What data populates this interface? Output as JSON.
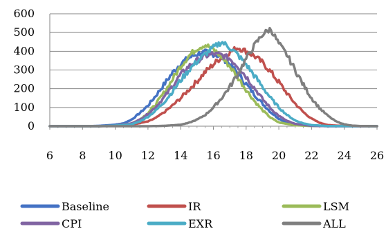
{
  "chart_data": {
    "type": "line",
    "title": "",
    "xlabel": "",
    "ylabel": "",
    "xlim": [
      6,
      26
    ],
    "ylim": [
      0,
      600
    ],
    "x_ticks": [
      "6",
      "8",
      "10",
      "12",
      "14",
      "16",
      "18",
      "20",
      "22",
      "24",
      "26"
    ],
    "y_ticks": [
      "0",
      "100",
      "200",
      "300",
      "400",
      "500",
      "600"
    ],
    "grid": "horizontal",
    "legend_position": "bottom",
    "series": [
      {
        "name": "Baseline",
        "color": "#4472C4",
        "points": [
          [
            6,
            0
          ],
          [
            8,
            0
          ],
          [
            9,
            2
          ],
          [
            10,
            8
          ],
          [
            10.5,
            15
          ],
          [
            11,
            35
          ],
          [
            11.5,
            70
          ],
          [
            12,
            110
          ],
          [
            12.5,
            165
          ],
          [
            13,
            225
          ],
          [
            13.5,
            285
          ],
          [
            14,
            335
          ],
          [
            14.5,
            365
          ],
          [
            15,
            385
          ],
          [
            15.5,
            395
          ],
          [
            16,
            385
          ],
          [
            16.5,
            370
          ],
          [
            17,
            330
          ],
          [
            17.5,
            280
          ],
          [
            18,
            225
          ],
          [
            18.5,
            170
          ],
          [
            19,
            120
          ],
          [
            19.5,
            75
          ],
          [
            20,
            40
          ],
          [
            20.5,
            18
          ],
          [
            21,
            8
          ],
          [
            22,
            2
          ],
          [
            23,
            0
          ],
          [
            26,
            0
          ]
        ]
      },
      {
        "name": "IR",
        "color": "#C0504D",
        "points": [
          [
            6,
            0
          ],
          [
            9,
            0
          ],
          [
            10,
            2
          ],
          [
            11,
            8
          ],
          [
            12,
            25
          ],
          [
            12.5,
            45
          ],
          [
            13,
            75
          ],
          [
            13.5,
            110
          ],
          [
            14,
            150
          ],
          [
            14.5,
            195
          ],
          [
            15,
            240
          ],
          [
            15.5,
            290
          ],
          [
            16,
            330
          ],
          [
            16.5,
            370
          ],
          [
            17,
            395
          ],
          [
            17.5,
            420
          ],
          [
            18,
            400
          ],
          [
            18.5,
            375
          ],
          [
            19,
            340
          ],
          [
            19.5,
            290
          ],
          [
            20,
            235
          ],
          [
            20.5,
            175
          ],
          [
            21,
            120
          ],
          [
            21.5,
            75
          ],
          [
            22,
            40
          ],
          [
            22.5,
            18
          ],
          [
            23,
            6
          ],
          [
            24,
            1
          ],
          [
            26,
            0
          ]
        ]
      },
      {
        "name": "LSM",
        "color": "#9BBB59",
        "points": [
          [
            6,
            0
          ],
          [
            9,
            0
          ],
          [
            10,
            3
          ],
          [
            11,
            15
          ],
          [
            11.5,
            35
          ],
          [
            12,
            70
          ],
          [
            12.5,
            120
          ],
          [
            13,
            180
          ],
          [
            13.5,
            250
          ],
          [
            14,
            320
          ],
          [
            14.5,
            375
          ],
          [
            15,
            415
          ],
          [
            15.5,
            435
          ],
          [
            16,
            410
          ],
          [
            16.5,
            370
          ],
          [
            17,
            320
          ],
          [
            17.5,
            260
          ],
          [
            18,
            195
          ],
          [
            18.5,
            135
          ],
          [
            19,
            85
          ],
          [
            19.5,
            45
          ],
          [
            20,
            20
          ],
          [
            21,
            5
          ],
          [
            22,
            1
          ],
          [
            26,
            0
          ]
        ]
      },
      {
        "name": "CPI",
        "color": "#8064A2",
        "points": [
          [
            6,
            0
          ],
          [
            9,
            0
          ],
          [
            10,
            3
          ],
          [
            11,
            15
          ],
          [
            11.5,
            35
          ],
          [
            12,
            65
          ],
          [
            12.5,
            105
          ],
          [
            13,
            155
          ],
          [
            13.5,
            215
          ],
          [
            14,
            275
          ],
          [
            14.5,
            320
          ],
          [
            15,
            350
          ],
          [
            15.5,
            375
          ],
          [
            16,
            385
          ],
          [
            16.5,
            380
          ],
          [
            17,
            360
          ],
          [
            17.5,
            320
          ],
          [
            18,
            265
          ],
          [
            18.5,
            205
          ],
          [
            19,
            145
          ],
          [
            19.5,
            95
          ],
          [
            20,
            55
          ],
          [
            20.5,
            28
          ],
          [
            21,
            12
          ],
          [
            22,
            2
          ],
          [
            23,
            0
          ],
          [
            26,
            0
          ]
        ]
      },
      {
        "name": "EXR",
        "color": "#4BACC6",
        "points": [
          [
            6,
            0
          ],
          [
            9,
            0
          ],
          [
            10,
            3
          ],
          [
            11,
            10
          ],
          [
            11.5,
            25
          ],
          [
            12,
            50
          ],
          [
            12.5,
            85
          ],
          [
            13,
            130
          ],
          [
            13.5,
            185
          ],
          [
            14,
            245
          ],
          [
            14.5,
            300
          ],
          [
            15,
            345
          ],
          [
            15.5,
            385
          ],
          [
            16,
            420
          ],
          [
            16.5,
            450
          ],
          [
            17,
            420
          ],
          [
            17.5,
            380
          ],
          [
            18,
            330
          ],
          [
            18.5,
            270
          ],
          [
            19,
            210
          ],
          [
            19.5,
            150
          ],
          [
            20,
            100
          ],
          [
            20.5,
            60
          ],
          [
            21,
            30
          ],
          [
            21.5,
            15
          ],
          [
            22,
            6
          ],
          [
            23,
            1
          ],
          [
            26,
            0
          ]
        ]
      },
      {
        "name": "ALL",
        "color": "#7F7F7F",
        "points": [
          [
            6,
            0
          ],
          [
            12,
            0
          ],
          [
            13,
            2
          ],
          [
            14,
            8
          ],
          [
            14.5,
            18
          ],
          [
            15,
            35
          ],
          [
            15.5,
            60
          ],
          [
            16,
            100
          ],
          [
            16.5,
            150
          ],
          [
            17,
            210
          ],
          [
            17.5,
            280
          ],
          [
            18,
            360
          ],
          [
            18.5,
            430
          ],
          [
            19,
            490
          ],
          [
            19.5,
            520
          ],
          [
            20,
            440
          ],
          [
            20.5,
            380
          ],
          [
            21,
            300
          ],
          [
            21.5,
            220
          ],
          [
            22,
            150
          ],
          [
            22.5,
            95
          ],
          [
            23,
            55
          ],
          [
            23.5,
            25
          ],
          [
            24,
            10
          ],
          [
            24.5,
            3
          ],
          [
            25,
            1
          ],
          [
            26,
            0
          ]
        ]
      }
    ]
  }
}
